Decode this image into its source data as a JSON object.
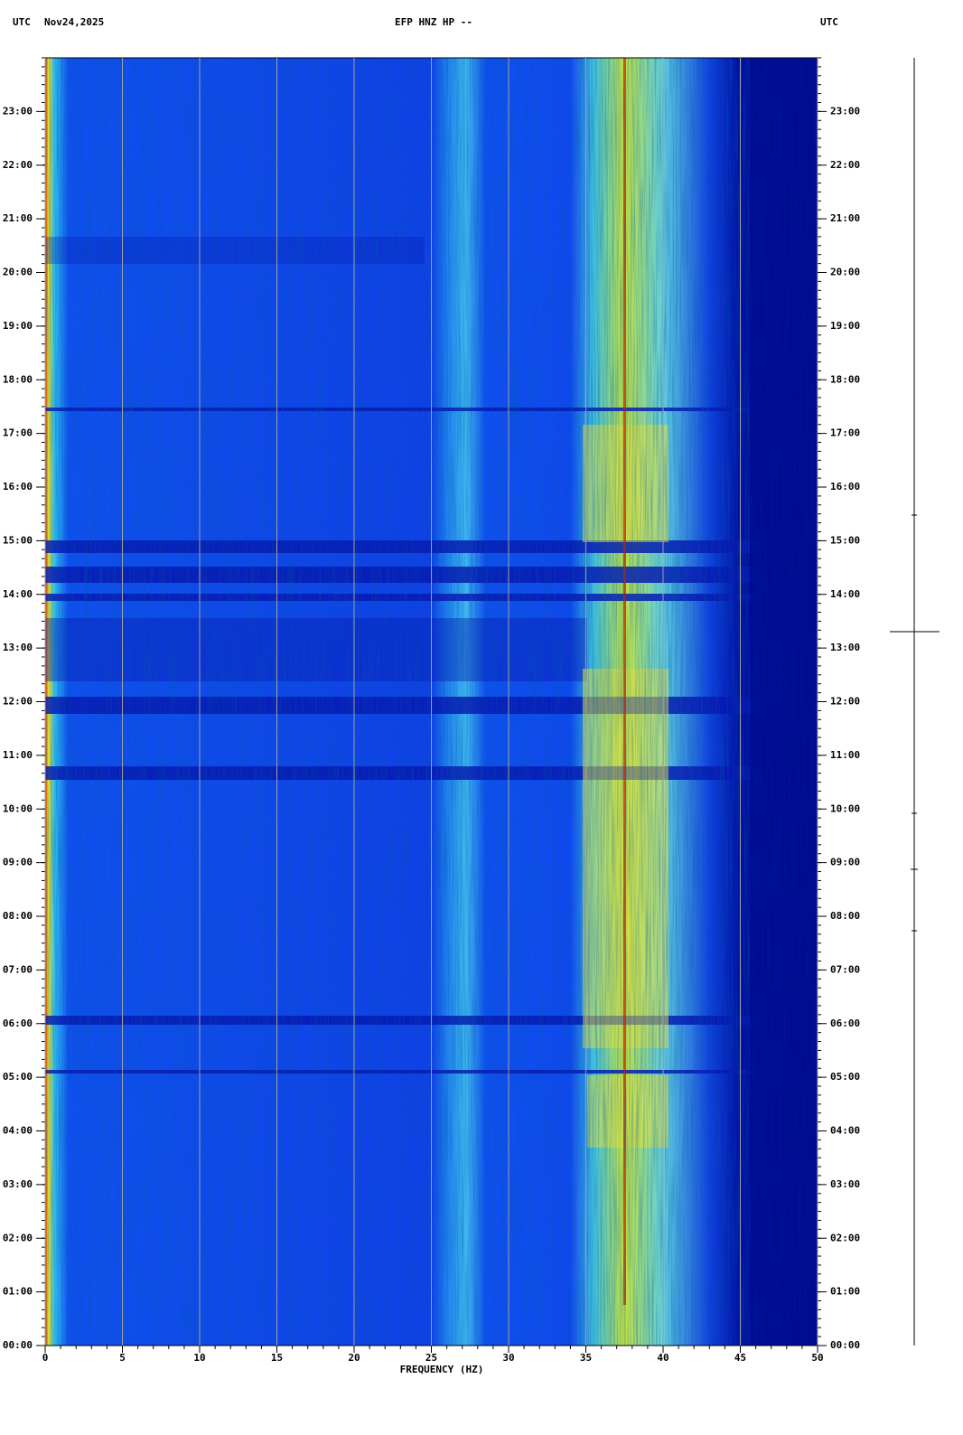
{
  "chart_data": {
    "type": "spectrogram",
    "timezone": "UTC",
    "date": "Nov24,2025",
    "title": "EFP HNZ HP --",
    "xlabel": "FREQUENCY (HZ)",
    "xlim": [
      0,
      50
    ],
    "xticks": [
      0,
      5,
      10,
      15,
      20,
      25,
      30,
      35,
      40,
      45,
      50
    ],
    "ylim": [
      0,
      24
    ],
    "yticks": [
      {
        "value": 0,
        "label": "00:00"
      },
      {
        "value": 1,
        "label": "01:00"
      },
      {
        "value": 2,
        "label": "02:00"
      },
      {
        "value": 3,
        "label": "03:00"
      },
      {
        "value": 4,
        "label": "04:00"
      },
      {
        "value": 5,
        "label": "05:00"
      },
      {
        "value": 6,
        "label": "06:00"
      },
      {
        "value": 7,
        "label": "07:00"
      },
      {
        "value": 8,
        "label": "08:00"
      },
      {
        "value": 9,
        "label": "09:00"
      },
      {
        "value": 10,
        "label": "10:00"
      },
      {
        "value": 11,
        "label": "11:00"
      },
      {
        "value": 12,
        "label": "12:00"
      },
      {
        "value": 13,
        "label": "13:00"
      },
      {
        "value": 14,
        "label": "14:00"
      },
      {
        "value": 15,
        "label": "15:00"
      },
      {
        "value": 16,
        "label": "16:00"
      },
      {
        "value": 17,
        "label": "17:00"
      },
      {
        "value": 18,
        "label": "18:00"
      },
      {
        "value": 19,
        "label": "19:00"
      },
      {
        "value": 20,
        "label": "20:00"
      },
      {
        "value": 21,
        "label": "21:00"
      },
      {
        "value": 22,
        "label": "22:00"
      },
      {
        "value": 23,
        "label": "23:00"
      }
    ],
    "grid": true
  }
}
